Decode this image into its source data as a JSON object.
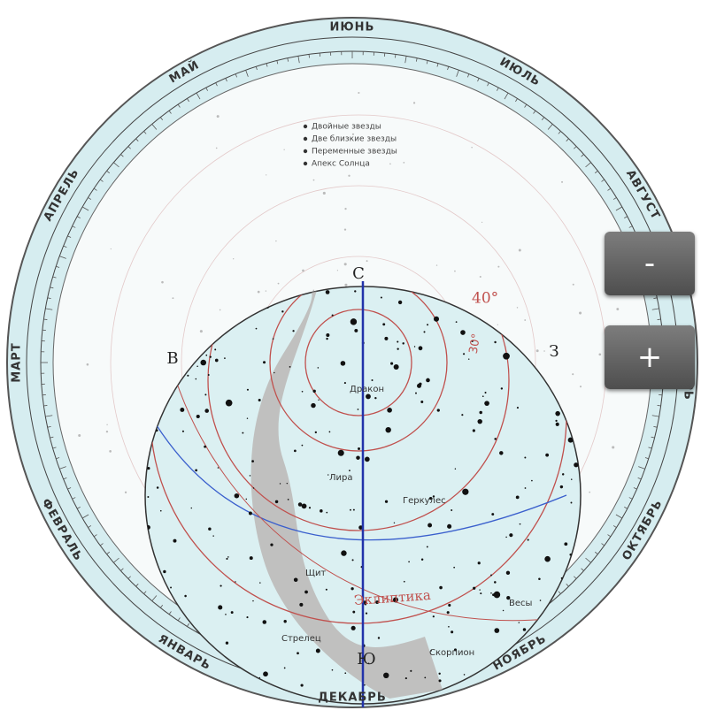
{
  "months": [
    "ИЮНЬ",
    "ИЮЛЬ",
    "АВГУСТ",
    "СЕНТЯБРЬ",
    "ОКТЯБРЬ",
    "НОЯБРЬ",
    "ДЕКАБРЬ",
    "ЯНВАРЬ",
    "ФЕВРАЛЬ",
    "МАРТ",
    "АПРЕЛЬ",
    "МАЙ"
  ],
  "legend": [
    "Двойные звезды",
    "Две близкие звезды",
    "Переменные звезды",
    "Апекс Солнца"
  ],
  "directions": {
    "north": "С",
    "south": "Ю",
    "east": "В",
    "west": "З"
  },
  "circle_labels": [
    "40°",
    "30°"
  ],
  "ecliptic_label": "Эклиптика",
  "constellations": [
    "Дракон",
    "Лира",
    "Геркулес",
    "Щит",
    "Весы",
    "Стрелец",
    "Скорпион"
  ],
  "zoom": {
    "out": "-",
    "in": "+"
  }
}
